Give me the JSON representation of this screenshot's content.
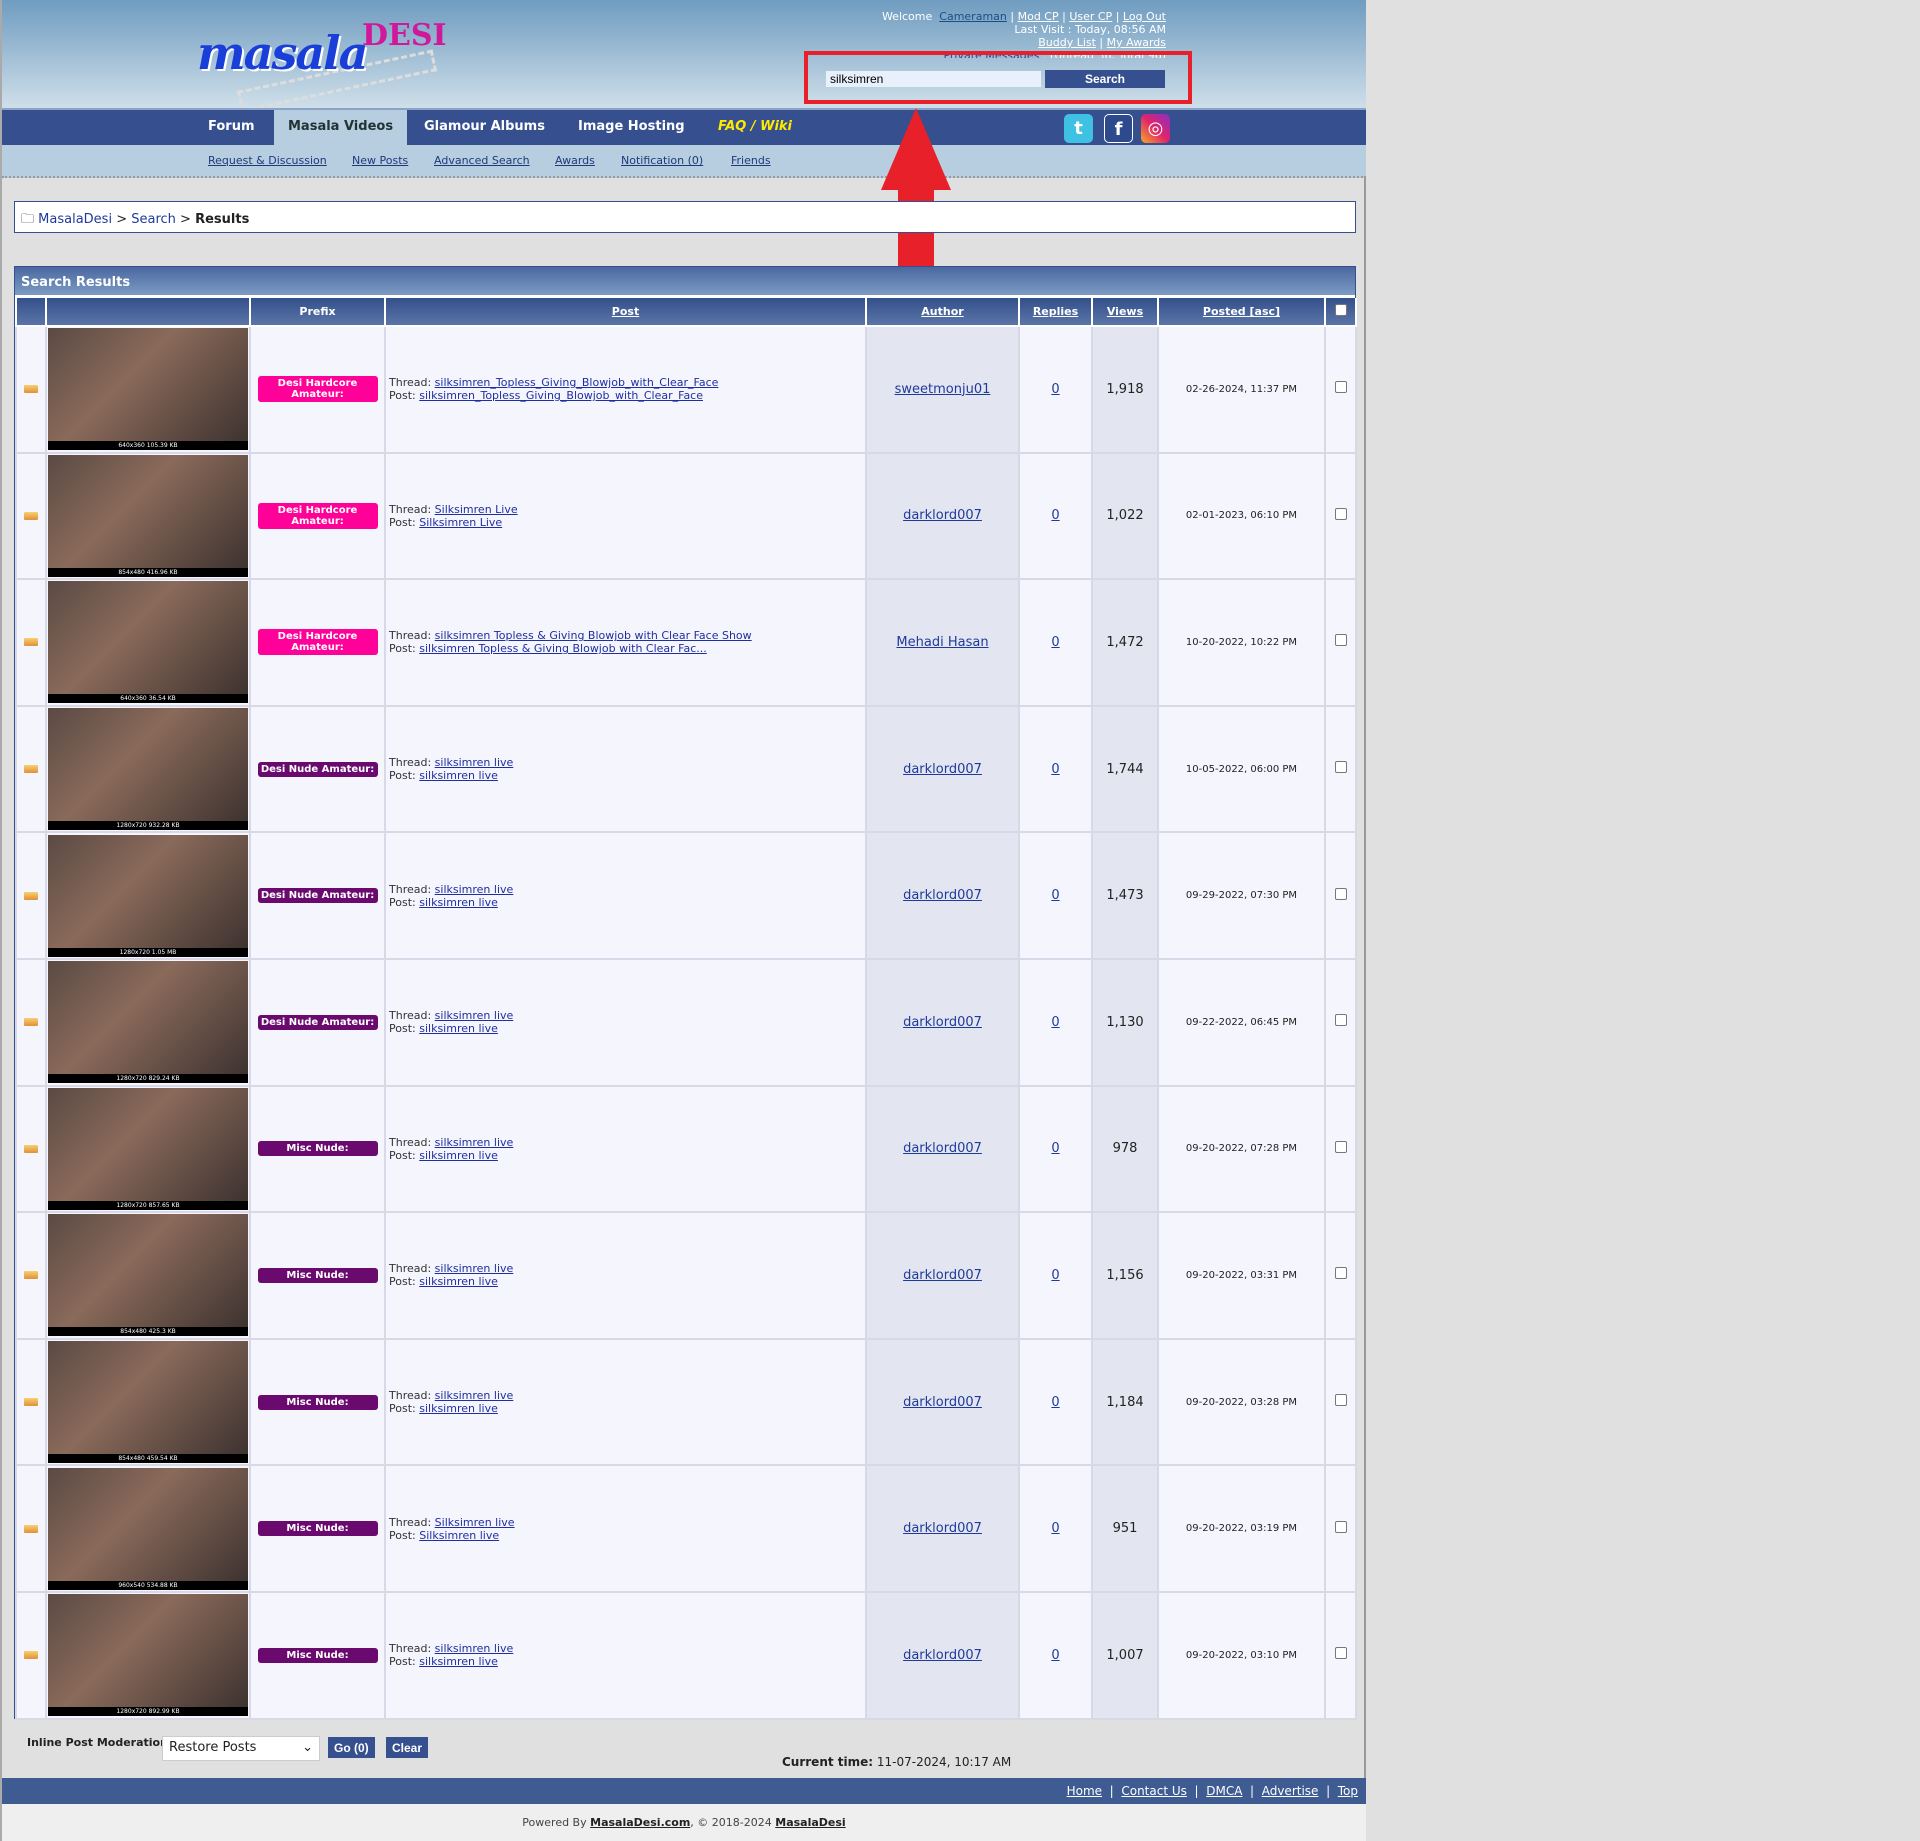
{
  "header": {
    "logo_text": "masalaDESI",
    "welcome": "Welcome",
    "username": "Cameraman",
    "mod_cp": "Mod CP",
    "user_cp": "User CP",
    "logout": "Log Out",
    "last_visit": "Last Visit : Today, 08:56 AM",
    "buddy_list": "Buddy List",
    "my_awards": "My Awards",
    "private_messages": "Private Messages",
    "pm_counts": ": (Unread 36, Total 96)",
    "search_value": "silksimren",
    "search_button": "Search",
    "highlight_color": "#e8202a"
  },
  "nav": {
    "items": [
      "Forum",
      "Masala Videos",
      "Glamour Albums",
      "Image Hosting",
      "FAQ / Wiki"
    ],
    "active": "Masala Videos"
  },
  "social": [
    "twitter-icon",
    "facebook-icon",
    "instagram-icon"
  ],
  "subnav": [
    "Request & Discussion",
    "New Posts",
    "Advanced Search",
    "Awards",
    "Notification (0)",
    "Friends"
  ],
  "breadcrumb": {
    "root": "MasalaDesi",
    "search": "Search",
    "current": "Results"
  },
  "results": {
    "title": "Search Results",
    "columns": {
      "prefix": "Prefix",
      "post": "Post",
      "author": "Author",
      "replies": "Replies",
      "views": "Views",
      "posted": "Posted",
      "posted_sort": "[asc]"
    },
    "thread_label": "Thread:",
    "post_label": "Post:",
    "rows": [
      {
        "thumb": "640x360 105.39 KB",
        "prefix": "Desi Hardcore Amateur:",
        "prefix_color": "#ff0099",
        "thread": "silksimren_Topless_Giving_Blowjob_with_Clear_Face",
        "post": "silksimren_Topless_Giving_Blowjob_with_Clear_Face",
        "author": "sweetmonju01",
        "replies": "0",
        "views": "1,918",
        "posted": "02-26-2024, 11:37 PM"
      },
      {
        "thumb": "854x480 416.96 KB",
        "prefix": "Desi Hardcore Amateur:",
        "prefix_color": "#ff0099",
        "thread": "Silksimren Live",
        "post": "Silksimren Live",
        "author": "darklord007",
        "replies": "0",
        "views": "1,022",
        "posted": "02-01-2023, 06:10 PM"
      },
      {
        "thumb": "640x360 36.54 KB",
        "prefix": "Desi Hardcore Amateur:",
        "prefix_color": "#ff0099",
        "thread": "silksimren Topless & Giving Blowjob with Clear Face Show",
        "post": "silksimren Topless & Giving Blowjob with Clear Fac...",
        "author": "Mehadi Hasan",
        "replies": "0",
        "views": "1,472",
        "posted": "10-20-2022, 10:22 PM"
      },
      {
        "thumb": "1280x720 932.28 KB",
        "prefix": "Desi Nude Amateur:",
        "prefix_color": "#6a0a6e",
        "thread": "silksimren live",
        "post": "silksimren live",
        "author": "darklord007",
        "replies": "0",
        "views": "1,744",
        "posted": "10-05-2022, 06:00 PM"
      },
      {
        "thumb": "1280x720 1.05 MB",
        "prefix": "Desi Nude Amateur:",
        "prefix_color": "#6a0a6e",
        "thread": "silksimren live",
        "post": "silksimren live",
        "author": "darklord007",
        "replies": "0",
        "views": "1,473",
        "posted": "09-29-2022, 07:30 PM"
      },
      {
        "thumb": "1280x720 829.24 KB",
        "prefix": "Desi Nude Amateur:",
        "prefix_color": "#6a0a6e",
        "thread": "silksimren live",
        "post": "silksimren live",
        "author": "darklord007",
        "replies": "0",
        "views": "1,130",
        "posted": "09-22-2022, 06:45 PM"
      },
      {
        "thumb": "1280x720 857.65 KB",
        "prefix": "Misc Nude:",
        "prefix_color": "#6a0a6e",
        "thread": "silksimren live",
        "post": "silksimren live",
        "author": "darklord007",
        "replies": "0",
        "views": "978",
        "posted": "09-20-2022, 07:28 PM"
      },
      {
        "thumb": "854x480 425.3 KB",
        "prefix": "Misc Nude:",
        "prefix_color": "#6a0a6e",
        "thread": "silksimren live",
        "post": "silksimren live",
        "author": "darklord007",
        "replies": "0",
        "views": "1,156",
        "posted": "09-20-2022, 03:31 PM"
      },
      {
        "thumb": "854x480 459.54 KB",
        "prefix": "Misc Nude:",
        "prefix_color": "#6a0a6e",
        "thread": "silksimren live",
        "post": "silksimren live",
        "author": "darklord007",
        "replies": "0",
        "views": "1,184",
        "posted": "09-20-2022, 03:28 PM"
      },
      {
        "thumb": "960x540 534.88 KB",
        "prefix": "Misc Nude:",
        "prefix_color": "#6a0a6e",
        "thread": "Silksimren live",
        "post": "Silksimren live",
        "author": "darklord007",
        "replies": "0",
        "views": "951",
        "posted": "09-20-2022, 03:19 PM"
      },
      {
        "thumb": "1280x720 892.99 KB",
        "prefix": "Misc Nude:",
        "prefix_color": "#6a0a6e",
        "thread": "silksimren live",
        "post": "silksimren live",
        "author": "darklord007",
        "replies": "0",
        "views": "1,007",
        "posted": "09-20-2022, 03:10 PM"
      }
    ]
  },
  "moderation": {
    "label": "Inline Post Moderation:",
    "selected": "Restore Posts",
    "go": "Go (0)",
    "clear": "Clear"
  },
  "current_time": {
    "label": "Current time:",
    "value": "11-07-2024, 10:17 AM"
  },
  "footer": {
    "links": [
      "Home",
      "Contact Us",
      "DMCA",
      "Advertise",
      "Top"
    ],
    "powered_by": "Powered By",
    "site": "MasalaDesi.com",
    "copyright": ", © 2018-2024",
    "brand": "MasalaDesi"
  }
}
